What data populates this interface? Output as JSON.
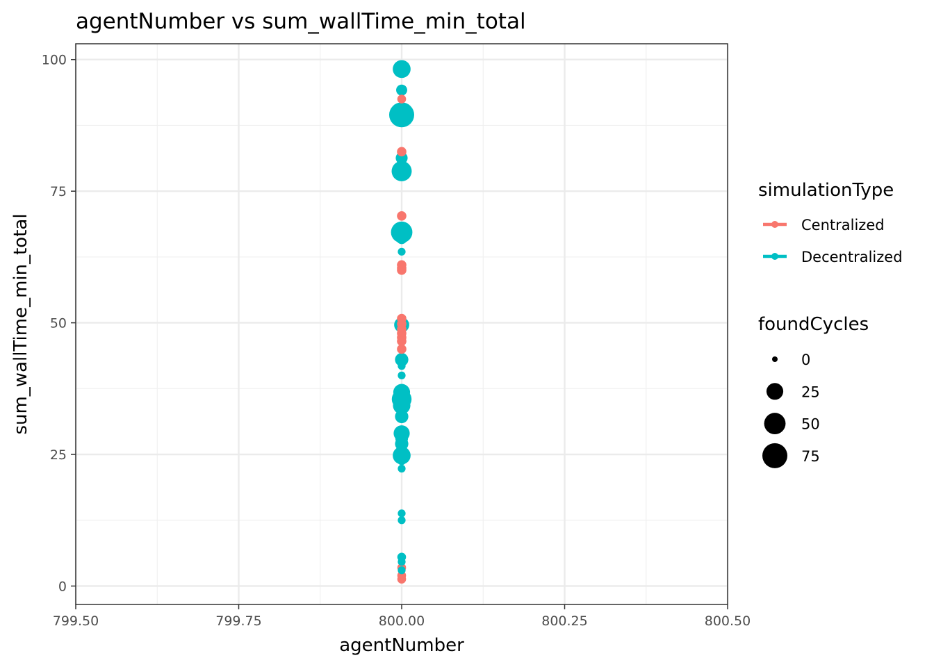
{
  "chart_data": {
    "type": "scatter",
    "title": "agentNumber  vs  sum_wallTime_min_total",
    "xlabel": "agentNumber",
    "ylabel": "sum_wallTime_min_total",
    "xlim": [
      799.5,
      800.5
    ],
    "ylim": [
      -3.5,
      103
    ],
    "x_ticks": [
      799.5,
      799.75,
      800.0,
      800.25,
      800.5
    ],
    "x_tick_labels": [
      "799.50",
      "799.75",
      "800.00",
      "800.25",
      "800.50"
    ],
    "y_ticks": [
      0,
      25,
      50,
      75,
      100
    ],
    "y_tick_labels": [
      "0",
      "25",
      "50",
      "75",
      "100"
    ],
    "grid": true,
    "legend_position": "right",
    "color_legend": {
      "title": "simulationType",
      "entries": [
        {
          "label": "Centralized",
          "color": "#F8766D"
        },
        {
          "label": "Decentralized",
          "color": "#00BFC4"
        }
      ]
    },
    "size_legend": {
      "title": "foundCycles",
      "entries": [
        {
          "label": "0",
          "value": 0
        },
        {
          "label": "25",
          "value": 25
        },
        {
          "label": "50",
          "value": 50
        },
        {
          "label": "75",
          "value": 75
        }
      ]
    },
    "series": [
      {
        "name": "Centralized",
        "color": "#F8766D",
        "points": [
          {
            "x": 800,
            "y": 92.5,
            "size": 2
          },
          {
            "x": 800,
            "y": 82.5,
            "size": 3
          },
          {
            "x": 800,
            "y": 70.3,
            "size": 3
          },
          {
            "x": 800,
            "y": 61.0,
            "size": 3
          },
          {
            "x": 800,
            "y": 60.4,
            "size": 3
          },
          {
            "x": 800,
            "y": 60.0,
            "size": 3
          },
          {
            "x": 800,
            "y": 50.8,
            "size": 3
          },
          {
            "x": 800,
            "y": 49.8,
            "size": 3
          },
          {
            "x": 800,
            "y": 48.8,
            "size": 3
          },
          {
            "x": 800,
            "y": 48.0,
            "size": 3
          },
          {
            "x": 800,
            "y": 47.2,
            "size": 3
          },
          {
            "x": 800,
            "y": 46.5,
            "size": 3
          },
          {
            "x": 800,
            "y": 45.0,
            "size": 3
          },
          {
            "x": 800,
            "y": 3.5,
            "size": 2
          },
          {
            "x": 800,
            "y": 2.0,
            "size": 2
          },
          {
            "x": 800,
            "y": 1.3,
            "size": 2
          }
        ]
      },
      {
        "name": "Decentralized",
        "color": "#00BFC4",
        "points": [
          {
            "x": 800,
            "y": 98.2,
            "size": 30
          },
          {
            "x": 800,
            "y": 94.2,
            "size": 6
          },
          {
            "x": 800,
            "y": 89.5,
            "size": 75
          },
          {
            "x": 800,
            "y": 81.3,
            "size": 8
          },
          {
            "x": 800,
            "y": 80.5,
            "size": 3
          },
          {
            "x": 800,
            "y": 78.8,
            "size": 42
          },
          {
            "x": 800,
            "y": 67.2,
            "size": 50
          },
          {
            "x": 800,
            "y": 66.0,
            "size": 6
          },
          {
            "x": 800,
            "y": 63.5,
            "size": 1
          },
          {
            "x": 800,
            "y": 49.6,
            "size": 18
          },
          {
            "x": 800,
            "y": 43.0,
            "size": 12
          },
          {
            "x": 800,
            "y": 41.8,
            "size": 1
          },
          {
            "x": 800,
            "y": 40.0,
            "size": 1
          },
          {
            "x": 800,
            "y": 36.8,
            "size": 25
          },
          {
            "x": 800,
            "y": 35.5,
            "size": 40
          },
          {
            "x": 800,
            "y": 34.3,
            "size": 28
          },
          {
            "x": 800,
            "y": 32.2,
            "size": 12
          },
          {
            "x": 800,
            "y": 29.5,
            "size": 4
          },
          {
            "x": 800,
            "y": 29.0,
            "size": 22
          },
          {
            "x": 800,
            "y": 28.0,
            "size": 10
          },
          {
            "x": 800,
            "y": 27.0,
            "size": 12
          },
          {
            "x": 800,
            "y": 24.8,
            "size": 30
          },
          {
            "x": 800,
            "y": 23.8,
            "size": 2
          },
          {
            "x": 800,
            "y": 22.3,
            "size": 1
          },
          {
            "x": 800,
            "y": 13.8,
            "size": 1
          },
          {
            "x": 800,
            "y": 12.5,
            "size": 1
          },
          {
            "x": 800,
            "y": 5.5,
            "size": 2
          },
          {
            "x": 800,
            "y": 4.6,
            "size": 1
          },
          {
            "x": 800,
            "y": 3.0,
            "size": 1
          }
        ]
      }
    ]
  }
}
